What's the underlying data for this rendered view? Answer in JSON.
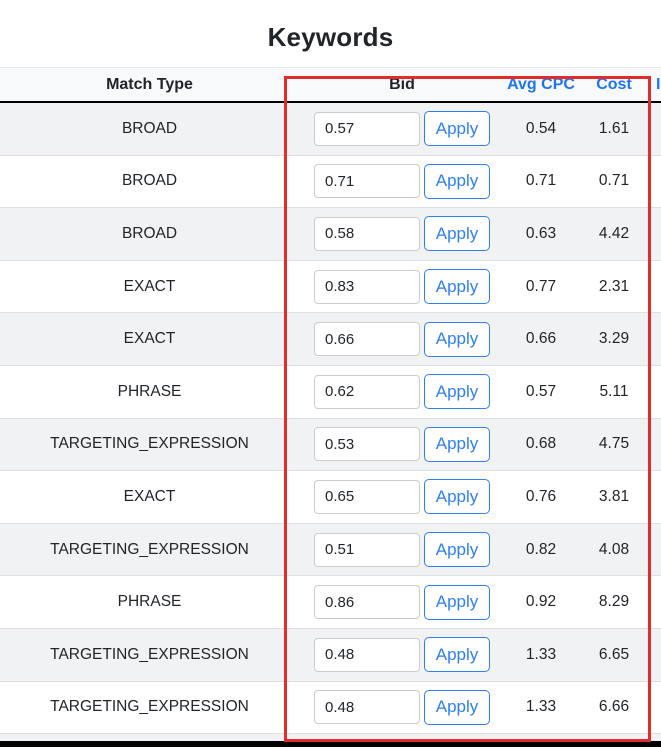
{
  "page": {
    "title": "Keywords"
  },
  "table": {
    "columns": [
      "Match Type",
      "Bid",
      "Avg CPC",
      "Cost"
    ],
    "next_column_fragment": "I",
    "apply_label": "Apply",
    "rows": [
      {
        "match_type": "BROAD",
        "bid": "0.57",
        "avg_cpc": "0.54",
        "cost": "1.61"
      },
      {
        "match_type": "BROAD",
        "bid": "0.71",
        "avg_cpc": "0.71",
        "cost": "0.71"
      },
      {
        "match_type": "BROAD",
        "bid": "0.58",
        "avg_cpc": "0.63",
        "cost": "4.42"
      },
      {
        "match_type": "EXACT",
        "bid": "0.83",
        "avg_cpc": "0.77",
        "cost": "2.31"
      },
      {
        "match_type": "EXACT",
        "bid": "0.66",
        "avg_cpc": "0.66",
        "cost": "3.29"
      },
      {
        "match_type": "PHRASE",
        "bid": "0.62",
        "avg_cpc": "0.57",
        "cost": "5.11"
      },
      {
        "match_type": "TARGETING_EXPRESSION",
        "bid": "0.53",
        "avg_cpc": "0.68",
        "cost": "4.75"
      },
      {
        "match_type": "EXACT",
        "bid": "0.65",
        "avg_cpc": "0.76",
        "cost": "3.81"
      },
      {
        "match_type": "TARGETING_EXPRESSION",
        "bid": "0.51",
        "avg_cpc": "0.82",
        "cost": "4.08"
      },
      {
        "match_type": "PHRASE",
        "bid": "0.86",
        "avg_cpc": "0.92",
        "cost": "8.29"
      },
      {
        "match_type": "TARGETING_EXPRESSION",
        "bid": "0.48",
        "avg_cpc": "1.33",
        "cost": "6.65"
      },
      {
        "match_type": "TARGETING_EXPRESSION",
        "bid": "0.48",
        "avg_cpc": "1.33",
        "cost": "6.66"
      }
    ]
  },
  "colors": {
    "accent_blue": "#1b76f2",
    "button_blue": "#2e80f2",
    "annotation_red": "#e02c2c",
    "row_stripe": "#f1f2f3",
    "header_bg": "#f8f9fa"
  }
}
